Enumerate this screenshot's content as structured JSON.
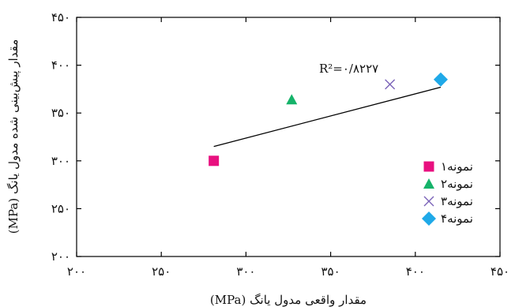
{
  "chart_data": {
    "type": "scatter",
    "xlabel": "مقدار واقعی مدول یانگ (MPa)",
    "ylabel": "مقدار پیش‌بینی شده مدول یانگ (MPa)",
    "xlim": [
      200,
      450
    ],
    "ylim": [
      200,
      450
    ],
    "x_ticks": [
      200,
      250,
      300,
      350,
      400,
      450
    ],
    "y_ticks": [
      200,
      250,
      300,
      350,
      400,
      450
    ],
    "x_tick_labels": [
      "۲۰۰",
      "۲۵۰",
      "۳۰۰",
      "۳۵۰",
      "۴۰۰",
      "۴۵۰"
    ],
    "y_tick_labels": [
      "۲۰۰",
      "۲۵۰",
      "۳۰۰",
      "۳۵۰",
      "۴۰۰",
      "۴۵۰"
    ],
    "grid": false,
    "legend_position": "bottom-right",
    "series": [
      {
        "name": "نمونه۱",
        "marker": "square",
        "color": "#e8107f",
        "points": [
          [
            281,
            300
          ]
        ]
      },
      {
        "name": "نمونه۲",
        "marker": "triangle",
        "color": "#16b36a",
        "points": [
          [
            327,
            364
          ]
        ]
      },
      {
        "name": "نمونه۳",
        "marker": "x",
        "color": "#7a62b8",
        "points": [
          [
            385,
            380
          ]
        ]
      },
      {
        "name": "نمونه۴",
        "marker": "diamond",
        "color": "#1fa9e8",
        "points": [
          [
            415,
            385
          ]
        ]
      }
    ],
    "trendline": {
      "x": [
        281,
        415
      ],
      "y": [
        315,
        377
      ],
      "color": "#000000"
    },
    "annotation": "R²=۰/۸۲۲۷"
  }
}
